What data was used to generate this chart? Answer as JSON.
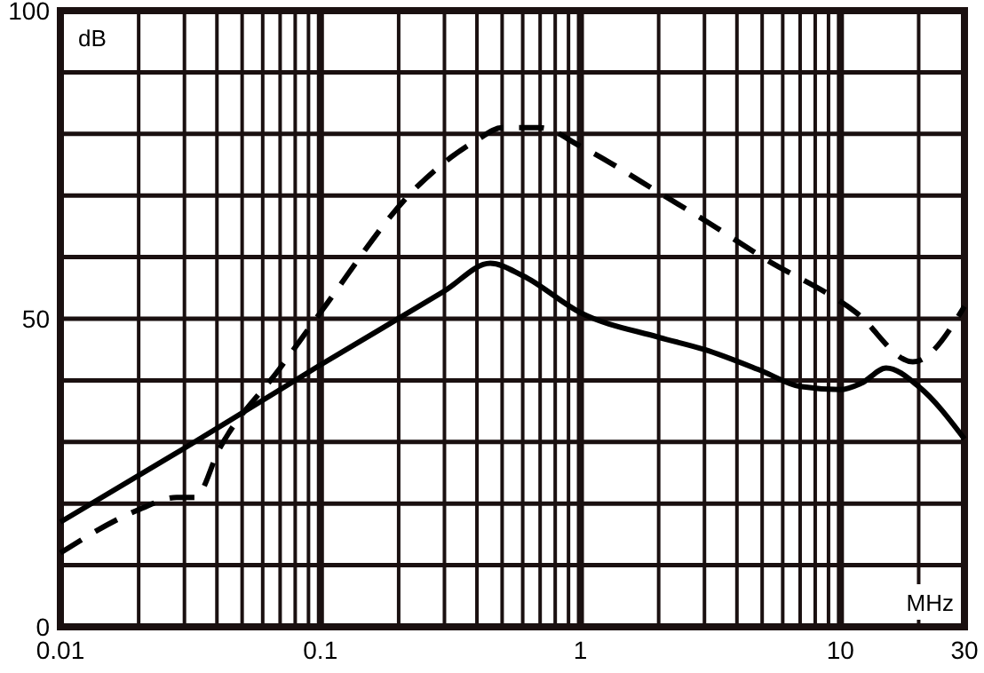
{
  "chart_data": {
    "type": "line",
    "xlabel": "MHz",
    "ylabel": "dB",
    "log": "x",
    "xlim": [
      0.01,
      30
    ],
    "ylim": [
      0,
      100
    ],
    "xticks": [
      0.01,
      {
        "value": 0.02,
        "label": null
      },
      {
        "value": 0.03,
        "label": null
      },
      {
        "value": 0.04,
        "label": null
      },
      {
        "value": 0.05,
        "label": null
      },
      {
        "value": 0.06,
        "label": null
      },
      {
        "value": 0.07,
        "label": null
      },
      {
        "value": 0.08,
        "label": null
      },
      {
        "value": 0.09,
        "label": null
      },
      0.1,
      {
        "value": 0.2,
        "label": null
      },
      {
        "value": 0.3,
        "label": null
      },
      {
        "value": 0.4,
        "label": null
      },
      {
        "value": 0.5,
        "label": null
      },
      {
        "value": 0.6,
        "label": null
      },
      {
        "value": 0.7,
        "label": null
      },
      {
        "value": 0.8,
        "label": null
      },
      {
        "value": 0.9,
        "label": null
      },
      1,
      {
        "value": 2,
        "label": null
      },
      {
        "value": 3,
        "label": null
      },
      {
        "value": 4,
        "label": null
      },
      {
        "value": 5,
        "label": null
      },
      {
        "value": 6,
        "label": null
      },
      {
        "value": 7,
        "label": null
      },
      {
        "value": 8,
        "label": null
      },
      {
        "value": 9,
        "label": null
      },
      10,
      {
        "value": 20,
        "label": null
      },
      30
    ],
    "yticks": [
      0,
      {
        "value": 10,
        "label": null
      },
      {
        "value": 20,
        "label": null
      },
      {
        "value": 30,
        "label": null
      },
      {
        "value": 40,
        "label": null
      },
      50,
      {
        "value": 60,
        "label": null
      },
      {
        "value": 70,
        "label": null
      },
      {
        "value": 80,
        "label": null
      },
      {
        "value": 90,
        "label": null
      },
      100
    ],
    "grid": true,
    "series": [
      {
        "color": "#000000",
        "line_style": "solid",
        "x": [
          0.01,
          0.03,
          0.1,
          0.3,
          0.45,
          0.6,
          1,
          2,
          3,
          5,
          7,
          10,
          12,
          15,
          20,
          30
        ],
        "values": [
          17,
          29,
          42.5,
          54.5,
          59,
          57,
          51,
          47,
          45,
          41.5,
          39,
          38.5,
          39.5,
          42,
          39,
          30.5
        ]
      },
      {
        "color": "#000000",
        "line_style": "dashed",
        "x": [
          0.01,
          0.02,
          0.028,
          0.033,
          0.041,
          0.07,
          0.1,
          0.23,
          0.4,
          0.5,
          0.7,
          1,
          2,
          3,
          5,
          11.5,
          19,
          30
        ],
        "values": [
          12,
          19,
          21,
          21,
          29,
          42,
          51,
          71,
          79,
          81,
          81,
          78,
          70.5,
          66,
          60,
          51,
          43,
          52
        ]
      }
    ]
  }
}
